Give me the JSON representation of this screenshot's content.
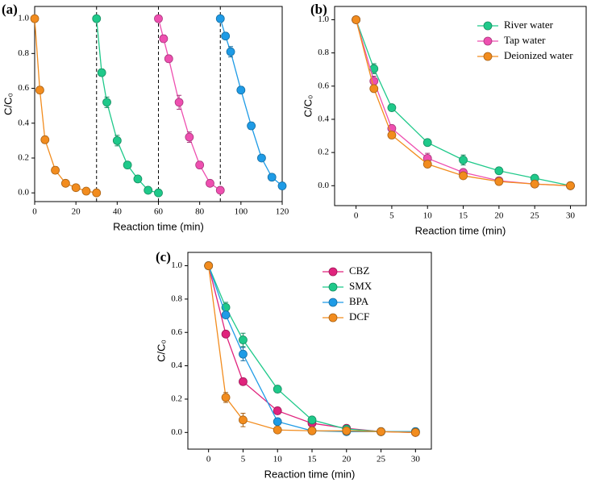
{
  "chart_data": [
    {
      "type": "line",
      "title": "(a)",
      "xlabel": "Reaction time (min)",
      "ylabel": "C/C₀",
      "xlim": [
        0,
        120
      ],
      "ylim": [
        -0.05,
        1.07
      ],
      "xticks": [
        0,
        20,
        40,
        60,
        80,
        100,
        120
      ],
      "yticks": [
        {
          "value": 0,
          "label": "0.0"
        },
        0.2,
        0.4,
        0.6,
        0.8,
        {
          "value": 1,
          "label": "1.0"
        }
      ],
      "vlines": [
        30,
        60,
        90
      ],
      "series": [
        {
          "color": "#f28c1e",
          "x": [
            0,
            2.5,
            5,
            10,
            15,
            20,
            25,
            30
          ],
          "values": [
            1.0,
            0.59,
            0.305,
            0.13,
            0.055,
            0.03,
            0.01,
            0.0
          ],
          "errors": [
            0.01,
            0.02,
            0.02,
            0.02,
            0.01,
            0.01,
            0.01,
            0.01
          ]
        },
        {
          "color": "#1fc98a",
          "x": [
            30,
            32.5,
            35,
            40,
            45,
            50,
            55,
            60
          ],
          "values": [
            1.0,
            0.69,
            0.52,
            0.3,
            0.16,
            0.08,
            0.015,
            0.0
          ],
          "errors": [
            0.01,
            0.02,
            0.03,
            0.03,
            0.01,
            0.01,
            0.01,
            0.01
          ]
        },
        {
          "color": "#ee4fb0",
          "x": [
            60,
            62.5,
            65,
            70,
            75,
            80,
            85,
            90
          ],
          "values": [
            1.0,
            0.885,
            0.77,
            0.52,
            0.32,
            0.16,
            0.055,
            0.015
          ],
          "errors": [
            0.01,
            0.02,
            0.02,
            0.04,
            0.03,
            0.02,
            0.01,
            0.01
          ]
        },
        {
          "color": "#1e9be6",
          "x": [
            90,
            92.5,
            95,
            100,
            105,
            110,
            115,
            120
          ],
          "values": [
            1.0,
            0.9,
            0.81,
            0.59,
            0.385,
            0.2,
            0.09,
            0.04
          ],
          "errors": [
            0.01,
            0.02,
            0.03,
            0.02,
            0.02,
            0.01,
            0.01,
            0.01
          ]
        }
      ]
    },
    {
      "type": "line",
      "title": "(b)",
      "xlabel": "Reaction time (min)",
      "ylabel": "C/C₀",
      "xlim": [
        -3,
        32.2
      ],
      "ylim": [
        -0.12,
        1.08
      ],
      "xticks": [
        0,
        5,
        10,
        15,
        20,
        25,
        30
      ],
      "yticks": [
        {
          "value": 0,
          "label": "0.0"
        },
        0.2,
        0.4,
        0.6,
        0.8,
        {
          "value": 1,
          "label": "1.0"
        }
      ],
      "legend": "upper right",
      "x": [
        0,
        2.5,
        5,
        10,
        15,
        20,
        25,
        30
      ],
      "series": [
        {
          "name": "River water",
          "color": "#1fc98a",
          "values": [
            1.0,
            0.705,
            0.47,
            0.26,
            0.155,
            0.09,
            0.045,
            0.0
          ],
          "errors": [
            0.01,
            0.03,
            0.02,
            0.01,
            0.03,
            0.02,
            0.01,
            0.01
          ]
        },
        {
          "name": "Tap water",
          "color": "#ee4fb0",
          "values": [
            1.0,
            0.63,
            0.345,
            0.165,
            0.08,
            0.03,
            0.01,
            0.0
          ],
          "errors": [
            0.01,
            0.03,
            0.02,
            0.03,
            0.01,
            0.01,
            0.01,
            0.01
          ]
        },
        {
          "name": "Deionized water",
          "color": "#f28c1e",
          "values": [
            1.0,
            0.585,
            0.305,
            0.13,
            0.06,
            0.025,
            0.01,
            0.0
          ],
          "errors": [
            0.01,
            0.02,
            0.02,
            0.02,
            0.01,
            0.01,
            0.01,
            0.01
          ]
        }
      ]
    },
    {
      "type": "line",
      "title": "(c)",
      "xlabel": "Reaction time (min)",
      "ylabel": "C/C₀",
      "xlim": [
        -3,
        32.3
      ],
      "ylim": [
        -0.1,
        1.08
      ],
      "xticks": [
        0,
        5,
        10,
        15,
        20,
        25,
        30
      ],
      "yticks": [
        {
          "value": 0,
          "label": "0.0"
        },
        0.2,
        0.4,
        0.6,
        0.8,
        {
          "value": 1,
          "label": "1.0"
        }
      ],
      "legend": "upper right",
      "x": [
        0,
        2.5,
        5,
        10,
        15,
        20,
        25,
        30
      ],
      "series": [
        {
          "name": "CBZ",
          "color": "#e0237d",
          "values": [
            1.0,
            0.59,
            0.305,
            0.13,
            0.055,
            0.025,
            0.005,
            0.0
          ],
          "errors": [
            0.01,
            0.02,
            0.02,
            0.02,
            0.01,
            0.01,
            0.01,
            0.01
          ]
        },
        {
          "name": "SMX",
          "color": "#1fc98a",
          "values": [
            1.0,
            0.75,
            0.555,
            0.26,
            0.075,
            0.02,
            0.005,
            0.005
          ],
          "errors": [
            0.01,
            0.03,
            0.04,
            0.02,
            0.01,
            0.01,
            0.01,
            0.01
          ]
        },
        {
          "name": "BPA",
          "color": "#1e9be6",
          "values": [
            1.0,
            0.705,
            0.47,
            0.065,
            0.01,
            0.005,
            0.005,
            0.005
          ],
          "errors": [
            0.01,
            0.02,
            0.04,
            0.02,
            0.01,
            0.01,
            0.01,
            0.01
          ]
        },
        {
          "name": "DCF",
          "color": "#f28c1e",
          "values": [
            1.0,
            0.21,
            0.075,
            0.015,
            0.01,
            0.01,
            0.005,
            0.0
          ],
          "errors": [
            0.01,
            0.03,
            0.04,
            0.01,
            0.01,
            0.01,
            0.01,
            0.01
          ]
        }
      ]
    }
  ]
}
